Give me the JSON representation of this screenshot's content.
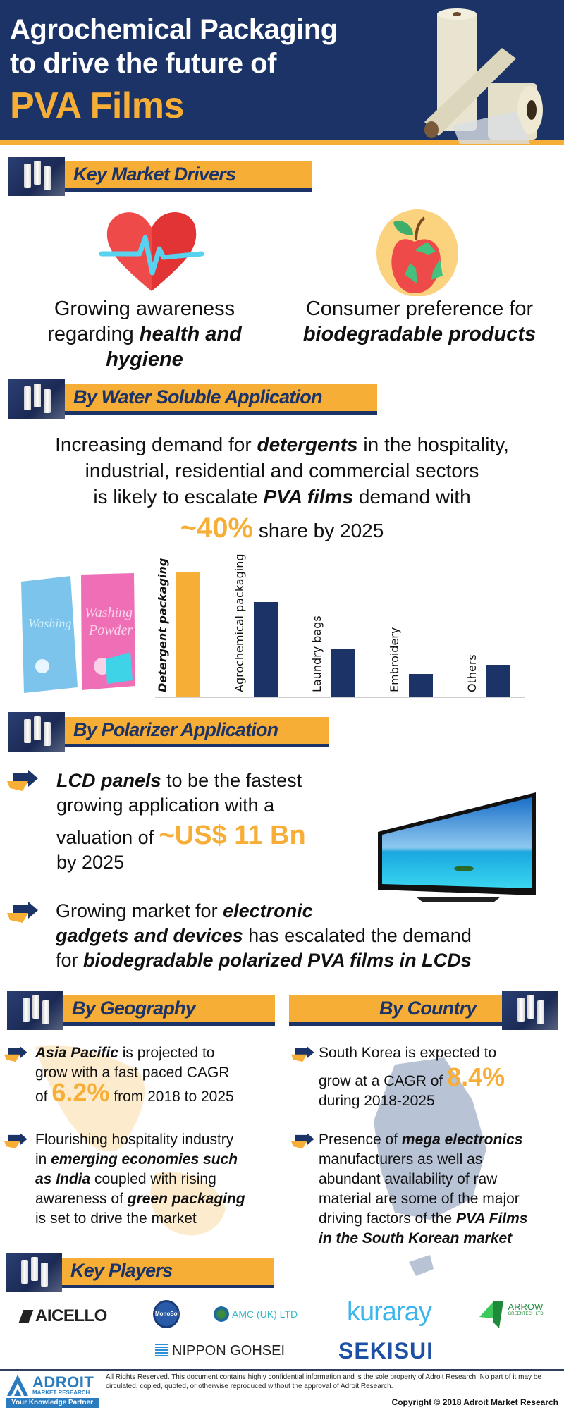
{
  "hero": {
    "line1": "Agrochemical Packaging",
    "line2": "to drive the future of",
    "line3": "PVA Films",
    "colors": {
      "background": "#1b3366",
      "accent": "#f7ae37"
    }
  },
  "sections": {
    "drivers": {
      "title": "Key Market Drivers"
    },
    "water": {
      "title": "By Water Soluble Application"
    },
    "polarizer": {
      "title": "By Polarizer Application"
    },
    "geography": {
      "title": "By Geography"
    },
    "country": {
      "title": "By Country"
    },
    "players": {
      "title": "Key Players"
    }
  },
  "drivers": [
    {
      "icon": "heart-pulse-icon",
      "text_plain": "Growing awareness regarding ",
      "text_bold": "health and hygiene"
    },
    {
      "icon": "apple-recycle-icon",
      "text_plain": "Consumer preference for ",
      "text_bold": "biodegradable products"
    }
  ],
  "water": {
    "l1a": "Increasing demand for ",
    "l1b": "detergents",
    "l1c": " in the hospitality,",
    "l2": "industrial, residential and commercial sectors",
    "l3a": "is likely to escalate ",
    "l3b": "PVA films",
    "l3c": " demand with",
    "share": "~40%",
    "share_suffix": " share by 2025",
    "image_alt": "washing-powder-packs"
  },
  "chart_data": {
    "type": "bar",
    "title": "",
    "categories": [
      "Detergent packaging",
      "Agrochemical packaging",
      "Laundry bags",
      "Embroidery",
      "Others"
    ],
    "values": [
      176,
      134,
      67,
      32,
      45
    ],
    "highlight_index": 0,
    "colors": {
      "highlight": "#f7ae37",
      "default": "#1b3366"
    },
    "xlabel": "",
    "ylabel": "",
    "grid": false,
    "legend": "none",
    "note": "Relative bar heights in px (no axis scale shown)"
  },
  "polarizer": {
    "b1a": "LCD panels",
    "b1b": " to be the fastest",
    "b1c": "growing application with a",
    "b1d": "valuation of ",
    "b1e": "~US$ 11 Bn",
    "b1f": "by 2025",
    "b2a": "Growing market for ",
    "b2b": "electronic",
    "b2c": "gadgets and devices",
    "b2d": " has escalated the demand",
    "b2e": "for ",
    "b2f": "biodegradable polarized PVA films in LCDs"
  },
  "geography": {
    "b1a": "Asia Pacific",
    "b1b": " is projected to",
    "b1c": "grow with a fast paced CAGR",
    "b1d": "of ",
    "b1e": "6.2%",
    "b1f": " from 2018 to 2025",
    "b2a": "Flourishing hospitality industry",
    "b2b": "in ",
    "b2c": "emerging economies such",
    "b2d": "as India",
    "b2e": " coupled with rising",
    "b2f": "awareness of ",
    "b2g": "green packaging",
    "b2h": "is set to drive the market"
  },
  "country": {
    "b1a": "South Korea is expected to",
    "b1b": "grow at a CAGR of ",
    "b1c": "8.4%",
    "b1d": "during 2018-2025",
    "b2a": "Presence of ",
    "b2b": "mega electronics",
    "b2c": "manufacturers as well as",
    "b2d": "abundant availability of raw",
    "b2e": "material are some of the major",
    "b2f": "driving factors of the ",
    "b2g": "PVA Films",
    "b2h": "in the South Korean market"
  },
  "players": [
    {
      "name": "AICELLO"
    },
    {
      "name": "MonoSol"
    },
    {
      "name": "AMC (UK) LTD"
    },
    {
      "name": "kuraray"
    },
    {
      "name": "ARROW",
      "sub": "GREENTECH LTD."
    },
    {
      "name": "NIPPON GOHSEI"
    },
    {
      "name": "SEKISUI"
    }
  ],
  "footer": {
    "brand": "ADROIT",
    "brand_sub": "MARKET RESEARCH",
    "tagline": "Your Knowledge Partner",
    "disclaimer": "All Rights Reserved. This document contains highly confidential information and is the sole property of Adroit Research. No part of it may be circulated, copied, quoted, or otherwise reproduced without the approval of Adroit Research.",
    "copyright": "Copyright © 2018 Adroit Market Research"
  }
}
